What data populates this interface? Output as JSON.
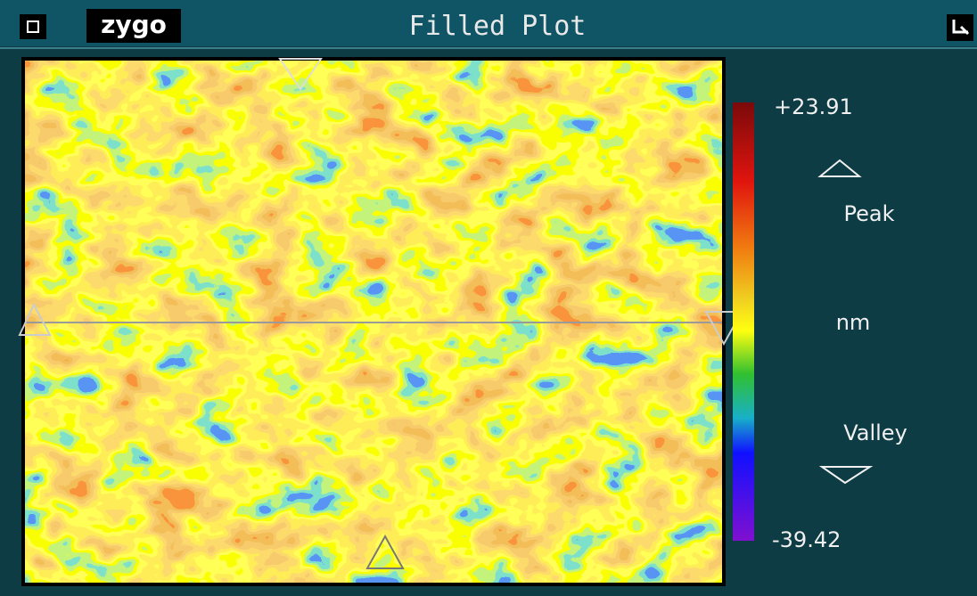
{
  "header": {
    "logo": "zygo",
    "title": "Filled Plot"
  },
  "scale": {
    "max": "+23.91",
    "peak": "Peak",
    "unit": "nm",
    "valley": "Valley",
    "min": "-39.42"
  }
}
